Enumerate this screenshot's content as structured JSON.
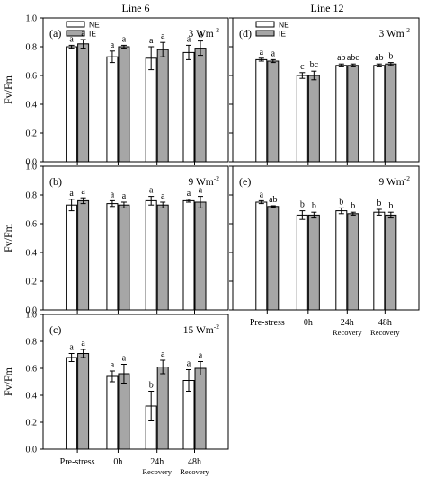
{
  "columns": [
    {
      "title": "Line 6"
    },
    {
      "title": "Line 12"
    }
  ],
  "ylabel": "Fv/Fm",
  "legend": [
    {
      "name": "NE",
      "color": "#ffffff"
    },
    {
      "name": "IE",
      "color": "#a6a6a6"
    }
  ],
  "colors": {
    "NE": "#ffffff",
    "IE": "#a6a6a6",
    "stroke": "#000000"
  },
  "chart_data": [
    {
      "type": "bar",
      "panel": "(a)",
      "irradiance": "3 Wm",
      "irradiance_exp": "-2",
      "column": 0,
      "row": 0,
      "ylim": [
        0,
        1.0
      ],
      "yticks": [
        "0.0",
        "0.2",
        "0.4",
        "0.6",
        "0.8",
        "1.0"
      ],
      "categories": [
        "Pre-stress",
        "0h",
        "24h",
        "48h"
      ],
      "category_sub": [
        "",
        "",
        "Recovery",
        "Recovery"
      ],
      "show_categories": false,
      "show_legend": true,
      "series": [
        {
          "name": "NE",
          "values": [
            0.8,
            0.73,
            0.72,
            0.76
          ],
          "errors": [
            0.01,
            0.04,
            0.08,
            0.05
          ],
          "labels": [
            "a",
            "a",
            "a",
            "a"
          ]
        },
        {
          "name": "IE",
          "values": [
            0.82,
            0.8,
            0.78,
            0.79
          ],
          "errors": [
            0.03,
            0.01,
            0.05,
            0.05
          ],
          "labels": [
            "a",
            "a",
            "a",
            "a"
          ]
        }
      ]
    },
    {
      "type": "bar",
      "panel": "(b)",
      "irradiance": "9 Wm",
      "irradiance_exp": "-2",
      "column": 0,
      "row": 1,
      "ylim": [
        0,
        1.0
      ],
      "yticks": [
        "0.0",
        "0.2",
        "0.4",
        "0.6",
        "0.8",
        "1.0"
      ],
      "categories": [
        "Pre-stress",
        "0h",
        "24h",
        "48h"
      ],
      "category_sub": [
        "",
        "",
        "Recovery",
        "Recovery"
      ],
      "show_categories": false,
      "show_legend": false,
      "series": [
        {
          "name": "NE",
          "values": [
            0.73,
            0.74,
            0.76,
            0.76
          ],
          "errors": [
            0.04,
            0.02,
            0.03,
            0.01
          ],
          "labels": [
            "a",
            "a",
            "a",
            "a"
          ]
        },
        {
          "name": "IE",
          "values": [
            0.76,
            0.73,
            0.73,
            0.75
          ],
          "errors": [
            0.02,
            0.02,
            0.02,
            0.04
          ],
          "labels": [
            "a",
            "a",
            "a",
            "a"
          ]
        }
      ]
    },
    {
      "type": "bar",
      "panel": "(c)",
      "irradiance": "15 Wm",
      "irradiance_exp": "-2",
      "column": 0,
      "row": 2,
      "ylim": [
        0,
        1.0
      ],
      "yticks": [
        "0.0",
        "0.2",
        "0.4",
        "0.6",
        "0.8",
        "1.0"
      ],
      "categories": [
        "Pre-stress",
        "0h",
        "24h",
        "48h"
      ],
      "category_sub": [
        "",
        "",
        "Recovery",
        "Recovery"
      ],
      "show_categories": true,
      "show_legend": false,
      "series": [
        {
          "name": "NE",
          "values": [
            0.68,
            0.54,
            0.32,
            0.51
          ],
          "errors": [
            0.03,
            0.04,
            0.11,
            0.08
          ],
          "labels": [
            "a",
            "a",
            "b",
            "a"
          ]
        },
        {
          "name": "IE",
          "values": [
            0.71,
            0.56,
            0.61,
            0.6
          ],
          "errors": [
            0.03,
            0.07,
            0.05,
            0.05
          ],
          "labels": [
            "a",
            "a",
            "a",
            "a"
          ]
        }
      ]
    },
    {
      "type": "bar",
      "panel": "(d)",
      "irradiance": "3 Wm",
      "irradiance_exp": "-2",
      "column": 1,
      "row": 0,
      "ylim": [
        0,
        1.0
      ],
      "yticks": [],
      "categories": [
        "Pre-stress",
        "0h",
        "24h",
        "48h"
      ],
      "category_sub": [
        "",
        "",
        "Recovery",
        "Recovery"
      ],
      "show_categories": false,
      "show_legend": true,
      "series": [
        {
          "name": "NE",
          "values": [
            0.71,
            0.6,
            0.67,
            0.67
          ],
          "errors": [
            0.01,
            0.02,
            0.01,
            0.01
          ],
          "labels": [
            "a",
            "c",
            "ab",
            "ab"
          ]
        },
        {
          "name": "IE",
          "values": [
            0.7,
            0.6,
            0.67,
            0.68
          ],
          "errors": [
            0.01,
            0.03,
            0.01,
            0.01
          ],
          "labels": [
            "a",
            "bc",
            "abc",
            "b"
          ]
        }
      ]
    },
    {
      "type": "bar",
      "panel": "(e)",
      "irradiance": "9 Wm",
      "irradiance_exp": "-2",
      "column": 1,
      "row": 1,
      "ylim": [
        0,
        1.0
      ],
      "yticks": [],
      "categories": [
        "Pre-stress",
        "0h",
        "24h",
        "48h"
      ],
      "category_sub": [
        "",
        "",
        "Recovery",
        "Recovery"
      ],
      "show_categories": true,
      "show_legend": false,
      "series": [
        {
          "name": "NE",
          "values": [
            0.75,
            0.66,
            0.69,
            0.68
          ],
          "errors": [
            0.01,
            0.03,
            0.02,
            0.02
          ],
          "labels": [
            "a",
            "b",
            "b",
            "b"
          ]
        },
        {
          "name": "IE",
          "values": [
            0.72,
            0.66,
            0.67,
            0.66
          ],
          "errors": [
            0.005,
            0.02,
            0.01,
            0.02
          ],
          "labels": [
            "ab",
            "b",
            "b",
            "b"
          ]
        }
      ]
    }
  ]
}
